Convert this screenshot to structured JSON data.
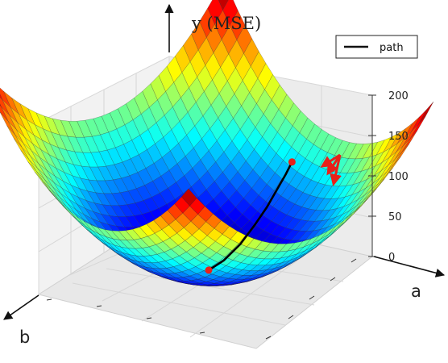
{
  "chart_data": {
    "type": "surface",
    "title": "",
    "zlabel": "y (MSE)",
    "xlabel": "a",
    "ylabel": "b",
    "zlim": [
      0,
      200
    ],
    "z_ticks": [
      "0",
      "50",
      "100",
      "150",
      "200"
    ],
    "grid": true,
    "legend": {
      "placement": "top-right",
      "entries": [
        "path"
      ]
    },
    "surface": {
      "function": "paraboloid",
      "colormap": "jet",
      "u_range": [
        -1,
        1
      ],
      "v_range": [
        -1,
        1
      ],
      "z_min": 0,
      "z_max": 200
    },
    "series": [
      {
        "name": "path",
        "color": "#000000",
        "points": [
          {
            "u": 0.82,
            "v": 0.14
          },
          {
            "u": 0.76,
            "v": 0.13
          },
          {
            "u": 0.68,
            "v": 0.12
          },
          {
            "u": 0.58,
            "v": 0.1
          },
          {
            "u": 0.46,
            "v": 0.08
          },
          {
            "u": 0.32,
            "v": 0.05
          },
          {
            "u": 0.16,
            "v": 0.02
          },
          {
            "u": 0.02,
            "v": 0.0
          }
        ],
        "start_marker_color": "#e8211a",
        "end_marker_color": "#e8211a"
      }
    ],
    "gradient_arrows_color": "#e8211a"
  }
}
